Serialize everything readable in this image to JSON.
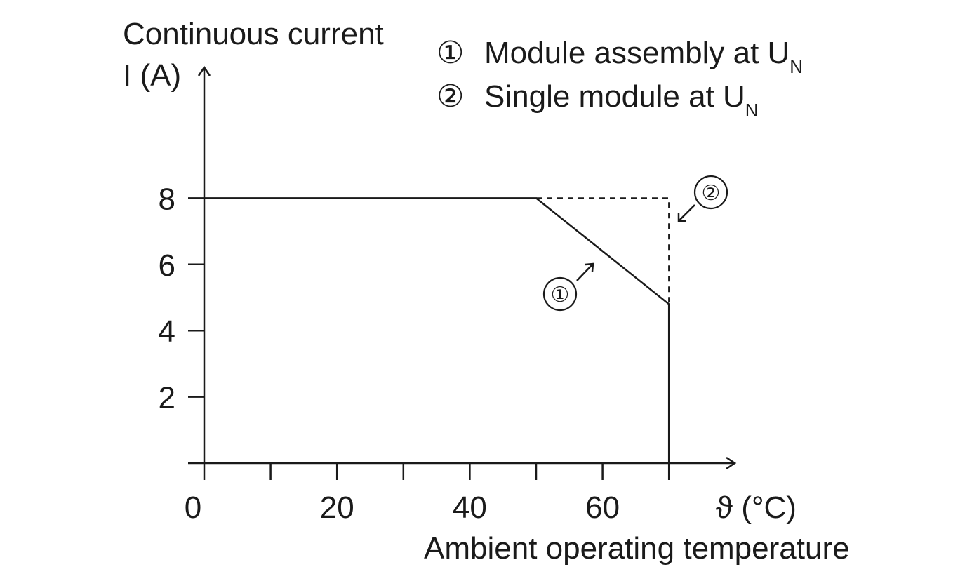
{
  "chart_data": {
    "type": "line",
    "ylabel_line1": "Continuous current",
    "ylabel_line2": "I (A)",
    "xlabel_unit": "ϑ (°C)",
    "xlabel": "Ambient operating temperature",
    "xlim": [
      0,
      80
    ],
    "ylim": [
      0,
      8
    ],
    "x_ticks": [
      0,
      10,
      20,
      30,
      40,
      50,
      60,
      70
    ],
    "x_tick_labels": [
      {
        "value": 0,
        "label": "0"
      },
      {
        "value": 20,
        "label": "20"
      },
      {
        "value": 40,
        "label": "40"
      },
      {
        "value": 60,
        "label": "60"
      }
    ],
    "y_ticks": [
      {
        "value": 2,
        "label": "2"
      },
      {
        "value": 4,
        "label": "4"
      },
      {
        "value": 6,
        "label": "6"
      },
      {
        "value": 8,
        "label": "8"
      }
    ],
    "series": [
      {
        "marker": "①",
        "label": "Module assembly at U",
        "subscript": "N",
        "style": "solid",
        "points": [
          [
            0,
            8
          ],
          [
            50,
            8
          ],
          [
            70,
            4.8
          ],
          [
            70,
            0
          ]
        ]
      },
      {
        "marker": "②",
        "label": "Single module at U",
        "subscript": "N",
        "style": "dashed",
        "points": [
          [
            50,
            8
          ],
          [
            70,
            8
          ],
          [
            70,
            4.8
          ]
        ]
      }
    ],
    "annotations": [
      {
        "marker": "①",
        "series_index": 0
      },
      {
        "marker": "②",
        "series_index": 1
      }
    ],
    "legend_placement": "top-right",
    "grid": false
  }
}
